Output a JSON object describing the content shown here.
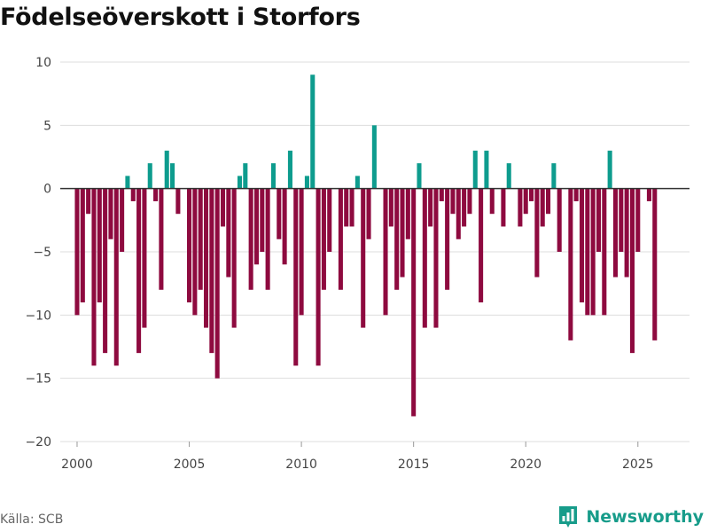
{
  "title": "Födelseöverskott i Storfors",
  "source": "Källa: SCB",
  "brand": {
    "name": "Newsworthy",
    "icon": "bar-chart-logo-icon"
  },
  "colors": {
    "positive": "#0e9c8e",
    "negative": "#8e0a3f",
    "grid": "#dddddd",
    "zero": "#333333",
    "text": "#444444",
    "brand": "#179c8a"
  },
  "chart_data": {
    "type": "bar",
    "title": "Födelseöverskott i Storfors",
    "xlabel": "",
    "ylabel": "",
    "ylim": [
      -20,
      10
    ],
    "yticks": [
      10,
      5,
      0,
      -5,
      -10,
      -15,
      -20
    ],
    "ytick_labels": [
      "10",
      "5",
      "0",
      "−5",
      "−10",
      "−15",
      "−20"
    ],
    "xlim": [
      1999.25,
      2027.3
    ],
    "xticks": [
      2000,
      2005,
      2010,
      2015,
      2020,
      2025
    ],
    "xtick_labels": [
      "2000",
      "2005",
      "2010",
      "2015",
      "2020",
      "2025"
    ],
    "grid": true,
    "frequency": "quarterly",
    "start": 2000.0,
    "step": 0.25,
    "series": [
      {
        "name": "Födelseöverskott",
        "values": [
          -10,
          -9,
          -2,
          -14,
          -9,
          -13,
          -4,
          -14,
          -5,
          1,
          -1,
          -13,
          -11,
          2,
          -1,
          -8,
          3,
          2,
          -2,
          0,
          -9,
          -10,
          -8,
          -11,
          -13,
          -15,
          -3,
          -7,
          -11,
          1,
          2,
          -8,
          -6,
          -5,
          -8,
          2,
          -4,
          -6,
          3,
          -14,
          -10,
          1,
          9,
          -14,
          -8,
          -5,
          0,
          -8,
          -3,
          -3,
          1,
          -11,
          -4,
          5,
          0,
          -10,
          -3,
          -8,
          -7,
          -4,
          -18,
          2,
          -11,
          -3,
          -11,
          -1,
          -8,
          -2,
          -4,
          -3,
          -2,
          3,
          -9,
          3,
          -2,
          0,
          -3,
          2,
          0,
          -3,
          -2,
          -1,
          -7,
          -3,
          -2,
          2,
          -5,
          0,
          -12,
          -1,
          -9,
          -10,
          -10,
          -5,
          -10,
          3,
          -7,
          -5,
          -7,
          -13,
          -5,
          0,
          -1,
          -12
        ]
      }
    ]
  }
}
